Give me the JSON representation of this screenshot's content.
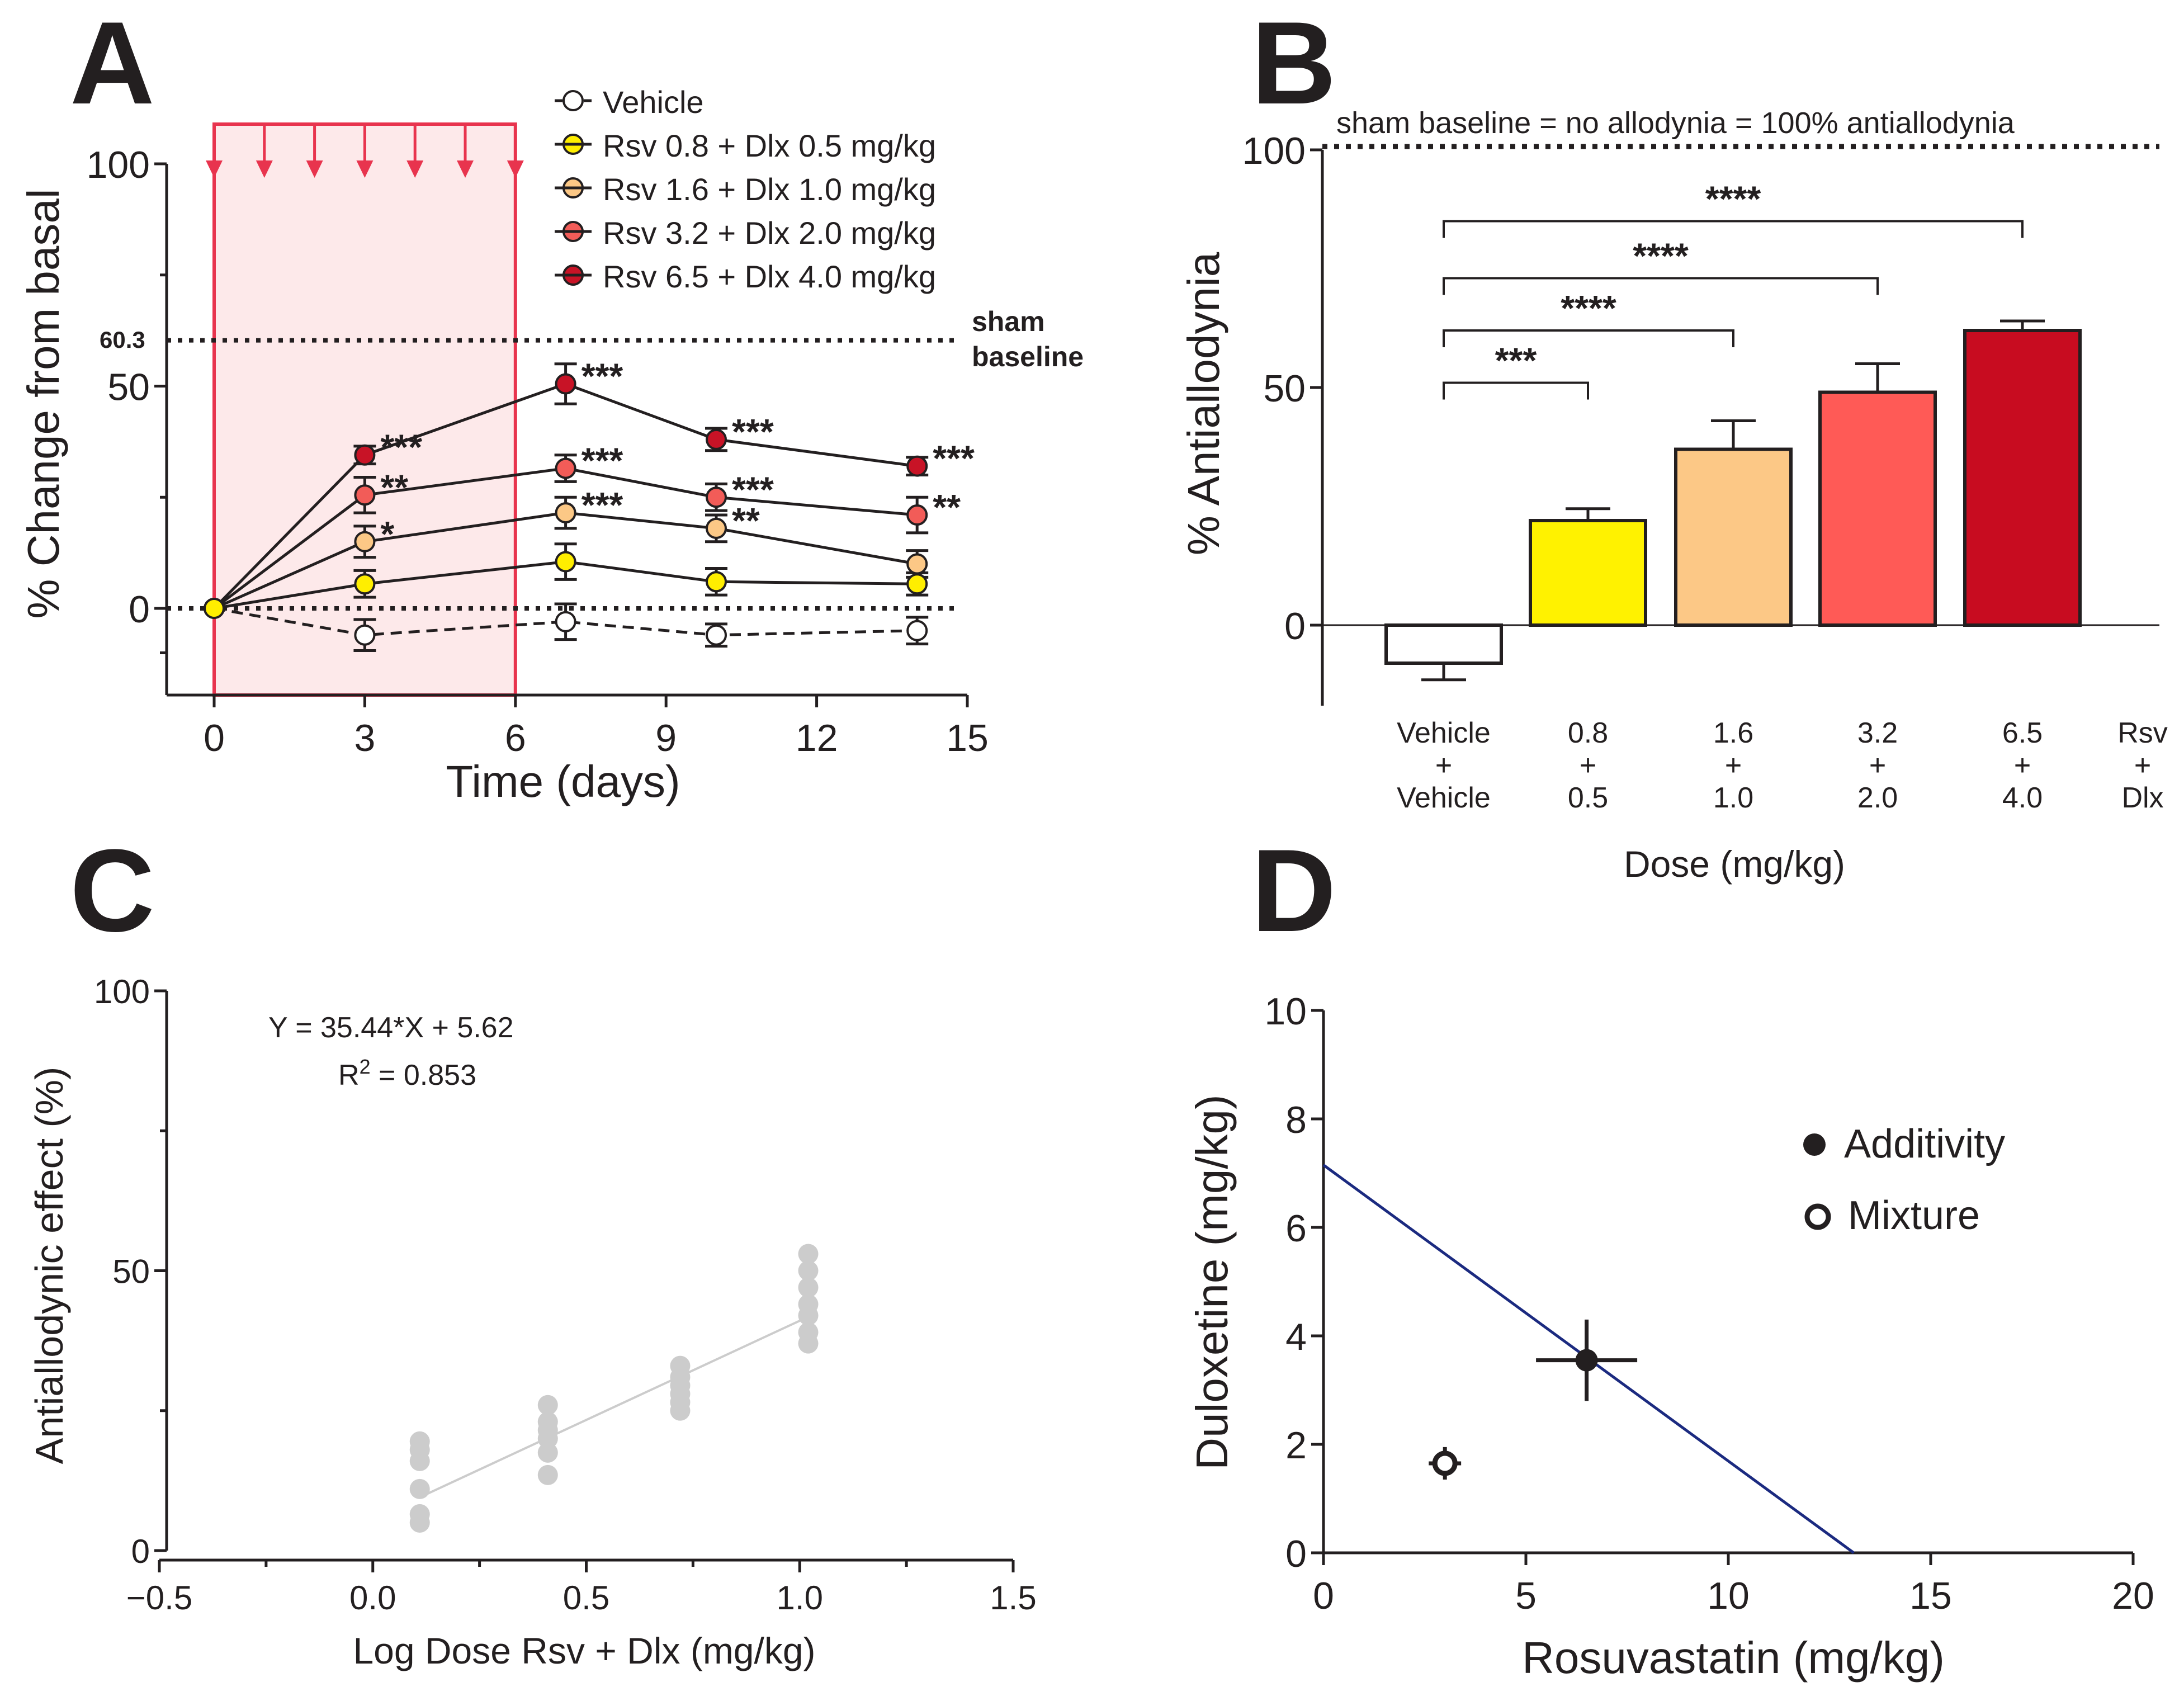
{
  "chart_data": [
    {
      "id": "A",
      "type": "line",
      "panel_label": "A",
      "xlabel": "Time (days)",
      "ylabel": "% Change from basal",
      "xlim": [
        -1,
        15
      ],
      "ylim": [
        -20,
        100
      ],
      "xticks": [
        0,
        3,
        6,
        9,
        12,
        15
      ],
      "yticks": [
        0,
        50,
        100
      ],
      "xtick_labels": [
        "0",
        "3",
        "6",
        "9",
        "12",
        "15"
      ],
      "ytick_labels": [
        "0",
        "50",
        "100"
      ],
      "shaded_period": [
        0,
        6
      ],
      "treatment_days": [
        0,
        1,
        2,
        3,
        4,
        5,
        6
      ],
      "sham_baseline": {
        "value": 60.3,
        "label": "60.3",
        "text_line1": "sham",
        "text_line2": "baseline"
      },
      "zero_line": 0,
      "series": [
        {
          "name": "Vehicle",
          "color": "#ffffff",
          "dashed": true,
          "x": [
            0,
            3,
            7,
            10,
            14
          ],
          "y": [
            0,
            -6,
            -3,
            -6,
            -5
          ],
          "err": [
            0,
            3.5,
            4,
            2.5,
            3
          ],
          "stars": [
            "",
            "",
            "",
            "",
            ""
          ]
        },
        {
          "name": "Rsv 0.8 + Dlx 0.5 mg/kg",
          "color": "#ffee00",
          "dashed": false,
          "x": [
            0,
            3,
            7,
            10,
            14
          ],
          "y": [
            0,
            5.5,
            10.5,
            6,
            5.5
          ],
          "err": [
            0,
            3,
            4,
            3,
            2.5
          ],
          "stars": [
            "",
            "",
            "",
            "",
            ""
          ]
        },
        {
          "name": "Rsv 1.6 + Dlx 1.0 mg/kg",
          "color": "#fcc886",
          "dashed": false,
          "x": [
            0,
            3,
            7,
            10,
            14
          ],
          "y": [
            0,
            15,
            21.5,
            18,
            10
          ],
          "err": [
            0,
            3.5,
            3.5,
            3,
            3
          ],
          "stars": [
            "",
            "*",
            "***",
            "**",
            ""
          ]
        },
        {
          "name": "Rsv 3.2 + Dlx 2.0 mg/kg",
          "color": "#f25c58",
          "dashed": false,
          "x": [
            0,
            3,
            7,
            10,
            14
          ],
          "y": [
            0,
            25.5,
            31.5,
            25,
            21
          ],
          "err": [
            0,
            4,
            3,
            3,
            4
          ],
          "stars": [
            "",
            "**",
            "***",
            "***",
            "**"
          ]
        },
        {
          "name": "Rsv 6.5 + Dlx 4.0 mg/kg",
          "color": "#c81326",
          "dashed": false,
          "x": [
            0,
            3,
            7,
            10,
            14
          ],
          "y": [
            0,
            34.5,
            50.5,
            38,
            32
          ],
          "err": [
            0,
            2,
            4.5,
            2.5,
            2
          ],
          "stars": [
            "",
            "***",
            "***",
            "***",
            "***"
          ]
        }
      ]
    },
    {
      "id": "B",
      "type": "bar",
      "panel_label": "B",
      "xlabel": "Dose (mg/kg)",
      "ylabel": "% Antiallodynia",
      "ylim": [
        -15,
        100
      ],
      "yticks": [
        0,
        50,
        100
      ],
      "ytick_labels": [
        "0",
        "50",
        "100"
      ],
      "top_note": "sham baseline =  no allodynia =  100% antiallodynia",
      "categories": [
        [
          "Vehicle",
          "+",
          "Vehicle"
        ],
        [
          "0.8",
          "+",
          "0.5"
        ],
        [
          "1.6",
          "+",
          "1.0"
        ],
        [
          "3.2",
          "+",
          "2.0"
        ],
        [
          "6.5",
          "+",
          "4.0"
        ]
      ],
      "axis_key": [
        "Rsv",
        "+",
        "Dlx"
      ],
      "values": [
        -8,
        22,
        37,
        49,
        62
      ],
      "errors": [
        3.5,
        2.5,
        6,
        6,
        2
      ],
      "colors": [
        "#ffffff",
        "#fff200",
        "#fcc886",
        "#ff5a56",
        "#c80c20"
      ],
      "comparisons": [
        {
          "from": 0,
          "to": 1,
          "label": "***",
          "y": 51
        },
        {
          "from": 0,
          "to": 2,
          "label": "****",
          "y": 62
        },
        {
          "from": 0,
          "to": 3,
          "label": "****",
          "y": 73
        },
        {
          "from": 0,
          "to": 4,
          "label": "****",
          "y": 85
        }
      ]
    },
    {
      "id": "C",
      "type": "scatter",
      "panel_label": "C",
      "xlabel": "Log Dose Rsv + Dlx (mg/kg)",
      "ylabel": "Antiallodynic effect (%)",
      "xlim": [
        -0.5,
        1.5
      ],
      "ylim": [
        0,
        100
      ],
      "xticks": [
        -0.5,
        0.0,
        0.5,
        1.0,
        1.5
      ],
      "xtick_labels": [
        "−0.5",
        "0.0",
        "0.5",
        "1.0",
        "1.5"
      ],
      "yticks": [
        0,
        50,
        100
      ],
      "ytick_labels": [
        "0",
        "50",
        "100"
      ],
      "equation": "Y = 35.44*X + 5.62",
      "r2_prefix": "R",
      "r2_sup": "2",
      "r2_value": " = 0.853",
      "fit": {
        "slope": 35.44,
        "intercept": 5.62,
        "x_range": [
          0.11,
          1.02
        ]
      },
      "point_color": "#cccccc",
      "points": [
        {
          "x": 0.11,
          "y": 5
        },
        {
          "x": 0.11,
          "y": 6.5
        },
        {
          "x": 0.11,
          "y": 11
        },
        {
          "x": 0.11,
          "y": 16
        },
        {
          "x": 0.11,
          "y": 18
        },
        {
          "x": 0.11,
          "y": 19.5
        },
        {
          "x": 0.41,
          "y": 13.5
        },
        {
          "x": 0.41,
          "y": 17.5
        },
        {
          "x": 0.41,
          "y": 20
        },
        {
          "x": 0.41,
          "y": 21.5
        },
        {
          "x": 0.41,
          "y": 23
        },
        {
          "x": 0.41,
          "y": 26
        },
        {
          "x": 0.72,
          "y": 25
        },
        {
          "x": 0.72,
          "y": 26.5
        },
        {
          "x": 0.72,
          "y": 28
        },
        {
          "x": 0.72,
          "y": 29.5
        },
        {
          "x": 0.72,
          "y": 31
        },
        {
          "x": 0.72,
          "y": 33
        },
        {
          "x": 1.02,
          "y": 37
        },
        {
          "x": 1.02,
          "y": 39
        },
        {
          "x": 1.02,
          "y": 42
        },
        {
          "x": 1.02,
          "y": 44
        },
        {
          "x": 1.02,
          "y": 47
        },
        {
          "x": 1.02,
          "y": 50
        },
        {
          "x": 1.02,
          "y": 53
        }
      ]
    },
    {
      "id": "D",
      "type": "scatter",
      "panel_label": "D",
      "subtype": "isobologram",
      "xlabel": "Rosuvastatin (mg/kg)",
      "ylabel": "Duloxetine (mg/kg)",
      "xlim": [
        0,
        20
      ],
      "ylim": [
        0,
        10
      ],
      "xticks": [
        0,
        5,
        10,
        15,
        20
      ],
      "xtick_labels": [
        "0",
        "5",
        "10",
        "15",
        "20"
      ],
      "yticks": [
        0,
        2,
        4,
        6,
        8,
        10
      ],
      "ytick_labels": [
        "0",
        "2",
        "4",
        "6",
        "8",
        "10"
      ],
      "line": {
        "x": [
          0,
          13.1
        ],
        "y": [
          7.15,
          0
        ],
        "color": "#1b2a80"
      },
      "additivity": {
        "label": "Additivity",
        "x": 6.5,
        "y": 3.55,
        "xerr": 1.25,
        "yerr": 0.75
      },
      "mixture": {
        "label": "Mixture",
        "x": 3.0,
        "y": 1.65,
        "xerr": 0.4,
        "yerr": 0.3
      }
    }
  ]
}
